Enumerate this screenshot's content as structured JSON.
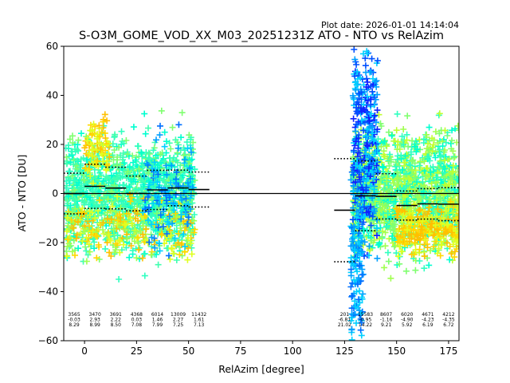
{
  "plot_date": "Plot date: 2026-01-01 14:14:04",
  "chart_data": {
    "type": "scatter",
    "title": "S-O3M_GOME_VOD_XX_M03_20251231Z ATO - NTO vs RelAzim",
    "xlabel": "RelAzim [degree]",
    "ylabel": "ATO - NTO [DU]",
    "xlim": [
      -10,
      180
    ],
    "ylim": [
      -60,
      60
    ],
    "xticks": [
      0,
      25,
      50,
      75,
      100,
      125,
      150,
      175
    ],
    "yticks": [
      -60,
      -40,
      -20,
      0,
      20,
      40,
      60
    ],
    "xtick_labels": [
      "0",
      "25",
      "50",
      "75",
      "100",
      "125",
      "150",
      "175"
    ],
    "ytick_labels": [
      "−60",
      "−40",
      "−20",
      "0",
      "20",
      "40",
      "60"
    ],
    "zero_line": 0,
    "bins": [
      {
        "x0": -10,
        "x1": 0,
        "count": "3565",
        "mean": "-0.03",
        "std": "8.29",
        "mean_val": -0.03,
        "std_val": 8.29
      },
      {
        "x0": 0,
        "x1": 10,
        "count": "3470",
        "mean": "2.93",
        "std": "8.99",
        "mean_val": 2.93,
        "std_val": 8.99
      },
      {
        "x0": 10,
        "x1": 20,
        "count": "3691",
        "mean": "2.22",
        "std": "8.50",
        "mean_val": 2.22,
        "std_val": 8.5
      },
      {
        "x0": 20,
        "x1": 30,
        "count": "4368",
        "mean": "0.03",
        "std": "7.08",
        "mean_val": 0.03,
        "std_val": 7.08
      },
      {
        "x0": 30,
        "x1": 40,
        "count": "6014",
        "mean": "1.46",
        "std": "7.99",
        "mean_val": 1.46,
        "std_val": 7.99
      },
      {
        "x0": 40,
        "x1": 50,
        "count": "13009",
        "mean": "2.27",
        "std": "7.25",
        "mean_val": 2.27,
        "std_val": 7.25
      },
      {
        "x0": 50,
        "x1": 60,
        "count": "11432",
        "mean": "1.61",
        "std": "7.13",
        "mean_val": 1.61,
        "std_val": 7.13
      },
      {
        "x0": 120,
        "x1": 130,
        "count": "201",
        "mean": "-6.81",
        "std": "21.02",
        "mean_val": -6.81,
        "std_val": 21.02
      },
      {
        "x0": 130,
        "x1": 140,
        "count": "15583",
        "mean": "-0.95",
        "std": "14.22",
        "mean_val": -0.95,
        "std_val": 14.22
      },
      {
        "x0": 140,
        "x1": 150,
        "count": "8607",
        "mean": "-1.16",
        "std": "9.21",
        "mean_val": -1.16,
        "std_val": 9.21
      },
      {
        "x0": 150,
        "x1": 160,
        "count": "6020",
        "mean": "-4.90",
        "std": "5.92",
        "mean_val": -4.9,
        "std_val": 5.92
      },
      {
        "x0": 160,
        "x1": 170,
        "count": "4671",
        "mean": "-4.23",
        "std": "6.19",
        "mean_val": -4.23,
        "std_val": 6.19
      },
      {
        "x0": 170,
        "x1": 180,
        "count": "4212",
        "mean": "-4.35",
        "std": "6.72",
        "mean_val": -4.35,
        "std_val": 6.72
      }
    ],
    "scatter_clusters": [
      {
        "x_range": [
          -9,
          53
        ],
        "y_center": 0,
        "y_spread": 22,
        "n": 1400,
        "colors": [
          "#00ffd0",
          "#30ffc0",
          "#80ff70",
          "#40ffb0"
        ]
      },
      {
        "x_range": [
          -9,
          53
        ],
        "y_center": -14,
        "y_spread": 12,
        "n": 260,
        "colors": [
          "#ffc000",
          "#ffd800",
          "#e0ff20",
          "#a0ff50"
        ]
      },
      {
        "x_range": [
          0,
          12
        ],
        "y_center": 20,
        "y_spread": 12,
        "n": 90,
        "colors": [
          "#ffc000",
          "#ffd800",
          "#e0ff20"
        ]
      },
      {
        "x_range": [
          28,
          52
        ],
        "y_center": 0,
        "y_spread": 22,
        "n": 120,
        "colors": [
          "#00a0ff",
          "#0070ff",
          "#00d0ff"
        ]
      },
      {
        "x_range": [
          129,
          180
        ],
        "y_center": 0,
        "y_spread": 24,
        "n": 1500,
        "colors": [
          "#80ff70",
          "#a0ff50",
          "#30ffc0",
          "#00ffd0",
          "#c0ff30"
        ]
      },
      {
        "x_range": [
          129,
          141
        ],
        "y_center": 20,
        "y_spread": 40,
        "n": 350,
        "colors": [
          "#00d0ff",
          "#00a0ff",
          "#0050ff",
          "#1020ff"
        ]
      },
      {
        "x_range": [
          150,
          180
        ],
        "y_center": -15,
        "y_spread": 10,
        "n": 220,
        "colors": [
          "#ffd800",
          "#ffc000",
          "#e0ff20"
        ]
      },
      {
        "x_range": [
          128,
          134
        ],
        "y_center": -30,
        "y_spread": 28,
        "n": 120,
        "colors": [
          "#00a0ff",
          "#0070ff",
          "#00d0ff"
        ]
      }
    ]
  }
}
